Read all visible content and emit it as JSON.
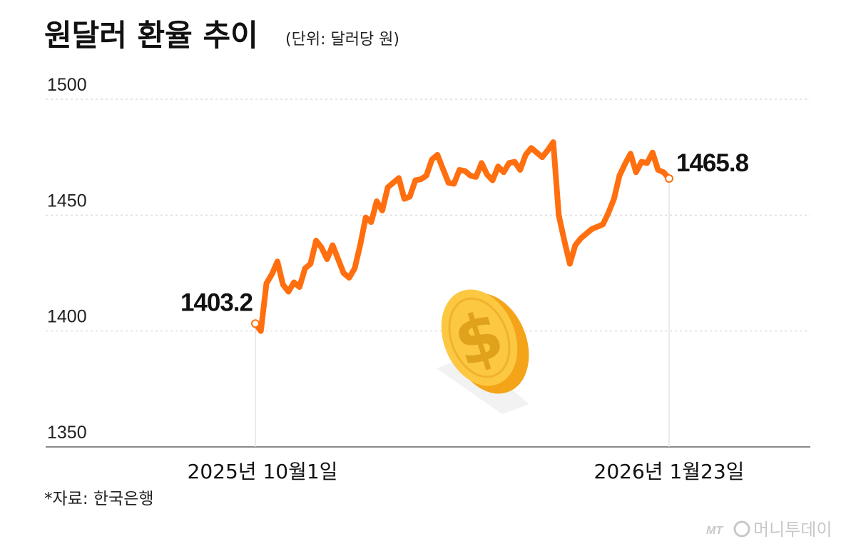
{
  "title": "원달러 환율 추이",
  "unit_note": "(단위: 달러당 원)",
  "source": "*자료: 한국은행",
  "watermark": {
    "logo_text": "MT",
    "brand": "머니투데이"
  },
  "colors": {
    "line": "#ff6f0f",
    "grid": "#d4d4d4",
    "axis": "#8a8a8a",
    "coin_face": "#fcc842",
    "coin_edge": "#f3a418",
    "coin_symbol": "#e0a21b"
  },
  "chart_data": {
    "type": "line",
    "title": "원달러 환율 추이",
    "ylim": [
      1350,
      1500
    ],
    "yticks": [
      "1350",
      "1400",
      "1450",
      "1500"
    ],
    "grid": true,
    "x_labels": {
      "start": "2025년 10월1일",
      "end": "2026년 1월23일"
    },
    "annotations": {
      "start_value": "1403.2",
      "end_value": "1465.8"
    },
    "series": [
      {
        "values": [
          1403.2,
          1400.0,
          1420.5,
          1424.5,
          1430.0,
          1420.0,
          1417.0,
          1421.0,
          1419.0,
          1427.0,
          1429.0,
          1439.0,
          1436.0,
          1431.0,
          1437.0,
          1431.0,
          1425.0,
          1423.0,
          1427.0,
          1437.0,
          1449.0,
          1447.0,
          1456.0,
          1452.0,
          1462.0,
          1464.0,
          1466.0,
          1457.0,
          1458.0,
          1465.0,
          1465.5,
          1467.0,
          1474.0,
          1476.0,
          1470.0,
          1464.0,
          1463.5,
          1469.5,
          1469.0,
          1467.0,
          1466.5,
          1472.5,
          1467.5,
          1465.0,
          1471.0,
          1468.5,
          1472.5,
          1473.0,
          1469.5,
          1476.0,
          1479.0,
          1477.0,
          1475.0,
          1478.0,
          1481.5,
          1450.0,
          1439.0,
          1429.0,
          1437.0,
          1440.0,
          1442.0,
          1444.0,
          1445.0,
          1446.0,
          1451.0,
          1457.0,
          1467.0,
          1472.0,
          1476.5,
          1468.5,
          1473.0,
          1472.5,
          1477.0,
          1469.5,
          1468.5,
          1465.8
        ]
      }
    ]
  }
}
